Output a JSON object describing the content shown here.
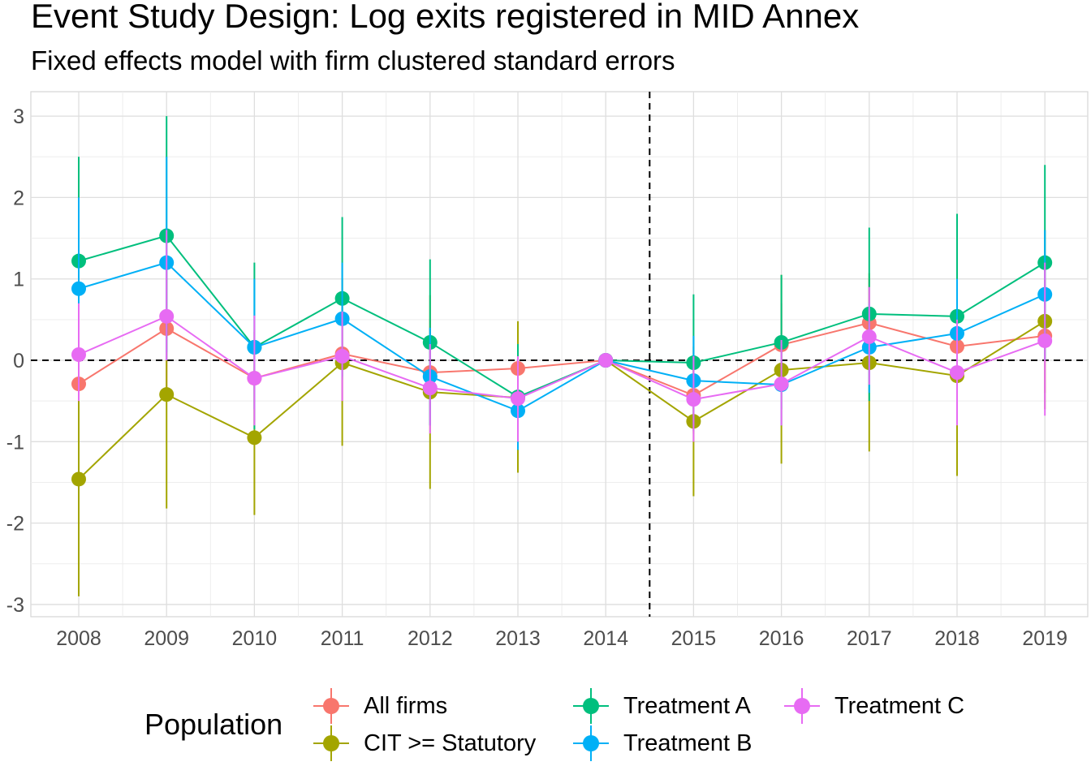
{
  "title": "Event Study Design: Log exits registered in MID Annex",
  "subtitle": "Fixed effects model with firm clustered standard errors",
  "legend_title": "Population",
  "chart_data": {
    "type": "line",
    "title": "Event Study Design: Log exits registered in MID Annex",
    "subtitle": "Fixed effects model with firm clustered standard errors",
    "xlabel": "",
    "ylabel": "",
    "x": [
      "2008",
      "2009",
      "2010",
      "2011",
      "2012",
      "2013",
      "2014",
      "2015",
      "2016",
      "2017",
      "2018",
      "2019"
    ],
    "ylim": [
      -3.15,
      3.3
    ],
    "yticks": [
      "3",
      "2",
      "1",
      "0",
      "-1",
      "-2",
      "-3"
    ],
    "ytick_values": [
      3,
      2,
      1,
      0,
      -1,
      -2,
      -3
    ],
    "reference_lines": {
      "horizontal_y": 0,
      "vertical_between": [
        "2014",
        "2015"
      ],
      "style": "dashed"
    },
    "grid": true,
    "legend_position": "bottom",
    "series": [
      {
        "name": "All firms",
        "color": "#F8766D",
        "values": [
          -0.29,
          0.39,
          -0.22,
          0.08,
          -0.15,
          -0.1,
          0,
          -0.43,
          0.19,
          0.46,
          0.17,
          0.3
        ],
        "lower": [
          -1.0,
          -0.4,
          -0.8,
          -0.5,
          -0.8,
          -0.6,
          0,
          -0.9,
          -0.3,
          -0.1,
          -0.4,
          -0.4
        ],
        "upper": [
          0.5,
          1.1,
          0.35,
          0.8,
          0.5,
          0.4,
          0,
          0.05,
          0.7,
          1.0,
          0.8,
          1.0
        ]
      },
      {
        "name": "CIT >= Statutory",
        "color": "#A3A500",
        "values": [
          -1.46,
          -0.42,
          -0.95,
          -0.03,
          -0.39,
          -0.46,
          0,
          -0.75,
          -0.12,
          -0.03,
          -0.19,
          0.48
        ],
        "lower": [
          -2.9,
          -1.82,
          -1.9,
          -1.05,
          -1.58,
          -1.38,
          0,
          -1.67,
          -1.27,
          -1.12,
          -1.42,
          -0.6
        ],
        "upper": [
          -0.05,
          1.0,
          0.0,
          1.0,
          0.8,
          0.48,
          0,
          0.17,
          1.05,
          1.07,
          1.04,
          1.6
        ]
      },
      {
        "name": "Treatment A",
        "color": "#00BF7D",
        "values": [
          1.22,
          1.53,
          0.16,
          0.76,
          0.22,
          -0.45,
          0,
          -0.03,
          0.22,
          0.57,
          0.54,
          1.2
        ],
        "lower": [
          0.0,
          0.1,
          -0.85,
          -0.24,
          -0.8,
          -1.1,
          0,
          -0.87,
          -0.6,
          -0.5,
          -0.7,
          0.0
        ],
        "upper": [
          2.5,
          3.0,
          1.2,
          1.76,
          1.24,
          0.2,
          0,
          0.81,
          1.05,
          1.63,
          1.8,
          2.4
        ]
      },
      {
        "name": "Treatment B",
        "color": "#00B0F6",
        "values": [
          0.88,
          1.2,
          0.16,
          0.51,
          -0.2,
          -0.62,
          0,
          -0.25,
          -0.3,
          0.16,
          0.33,
          0.81
        ],
        "lower": [
          -0.2,
          0.0,
          -0.6,
          -0.2,
          -0.8,
          -1.1,
          0,
          -0.8,
          -0.8,
          -0.4,
          -0.3,
          0.0
        ],
        "upper": [
          2.0,
          2.5,
          1.0,
          1.2,
          0.4,
          -0.1,
          0,
          0.3,
          0.2,
          0.7,
          1.0,
          1.6
        ]
      },
      {
        "name": "Treatment C",
        "color": "#E76BF3",
        "values": [
          0.07,
          0.54,
          -0.22,
          0.05,
          -0.34,
          -0.47,
          0,
          -0.48,
          -0.29,
          0.29,
          -0.15,
          0.24
        ],
        "lower": [
          -0.5,
          0.0,
          -0.8,
          -0.5,
          -0.9,
          -1.0,
          0,
          -1.0,
          -0.8,
          -0.3,
          -0.8,
          -0.68
        ],
        "upper": [
          0.7,
          1.6,
          0.55,
          0.6,
          0.2,
          0.05,
          0,
          0.05,
          0.25,
          0.9,
          0.5,
          1.2
        ]
      }
    ]
  }
}
